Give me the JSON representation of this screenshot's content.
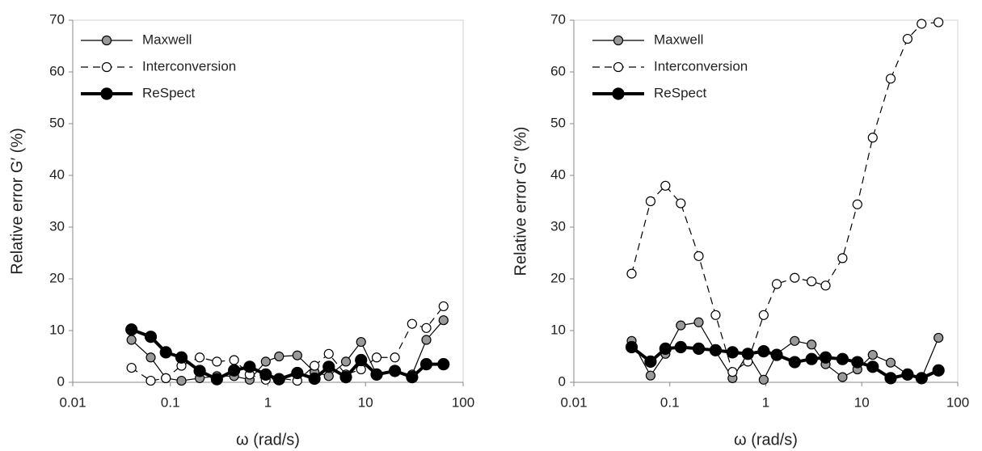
{
  "chart_data": [
    {
      "type": "line",
      "x_label": "ω (rad/s)",
      "y_label": "Relative error G′ (%)",
      "log_x": true,
      "x": [
        0.04,
        0.063,
        0.09,
        0.13,
        0.2,
        0.3,
        0.45,
        0.65,
        0.95,
        1.3,
        2,
        3,
        4.2,
        6.3,
        9,
        13,
        20,
        30,
        42,
        63
      ],
      "xlim": [
        0.01,
        100
      ],
      "xticks": [
        0.01,
        0.1,
        1,
        10,
        100
      ],
      "ylim": [
        0,
        70
      ],
      "yticks": [
        0,
        10,
        20,
        30,
        40,
        50,
        60,
        70
      ],
      "legend": "upper-left",
      "series": [
        {
          "name": "Maxwell",
          "color": "#000000",
          "marker_color": "#999999",
          "line_style": "solid",
          "bold": false,
          "values": [
            8.2,
            4.8,
            0.8,
            0.3,
            0.8,
            1.2,
            1.2,
            0.5,
            4,
            5,
            5.2,
            2,
            1.2,
            4,
            7.8,
            1.5,
            2,
            1.5,
            8.2,
            12
          ]
        },
        {
          "name": "Interconversion",
          "color": "#000000",
          "marker_color": "#ffffff",
          "line_style": "dashed",
          "bold": false,
          "values": [
            2.8,
            0.3,
            0.8,
            3.2,
            4.8,
            4,
            4.3,
            1.5,
            0.5,
            0.8,
            0.3,
            3.2,
            5.5,
            1.5,
            2.5,
            4.8,
            4.8,
            11.3,
            10.5,
            14.7
          ]
        },
        {
          "name": "ReSpect",
          "color": "#000000",
          "marker_color": "#000000",
          "line_style": "solid",
          "bold": true,
          "values": [
            10.2,
            8.8,
            5.8,
            4.8,
            2.2,
            0.6,
            2.3,
            3,
            1.5,
            0.6,
            1.8,
            0.7,
            3,
            1,
            4.3,
            1.5,
            2.2,
            1,
            3.5,
            3.5
          ]
        }
      ]
    },
    {
      "type": "line",
      "x_label": "ω (rad/s)",
      "y_label": "Relative error G″ (%)",
      "log_x": true,
      "x": [
        0.04,
        0.063,
        0.09,
        0.13,
        0.2,
        0.3,
        0.45,
        0.65,
        0.95,
        1.3,
        2,
        3,
        4.2,
        6.3,
        9,
        13,
        20,
        30,
        42,
        63
      ],
      "xlim": [
        0.01,
        100
      ],
      "xticks": [
        0.01,
        0.1,
        1,
        10,
        100
      ],
      "ylim": [
        0,
        70
      ],
      "yticks": [
        0,
        10,
        20,
        30,
        40,
        50,
        60,
        70
      ],
      "legend": "upper-left",
      "series": [
        {
          "name": "Maxwell",
          "color": "#000000",
          "marker_color": "#999999",
          "line_style": "solid",
          "bold": false,
          "values": [
            8,
            1.3,
            5.5,
            11,
            11.6,
            6,
            0.8,
            5.5,
            0.5,
            5.5,
            8,
            7.3,
            3.5,
            1,
            2.5,
            5.3,
            3.8,
            1.5,
            0.8,
            8.6
          ]
        },
        {
          "name": "Interconversion",
          "color": "#000000",
          "marker_color": "#ffffff",
          "line_style": "dashed",
          "bold": false,
          "values": [
            21,
            35,
            38,
            34.6,
            24.4,
            13,
            2,
            4,
            13,
            19,
            20.2,
            19.5,
            18.7,
            24,
            34.4,
            47.3,
            58.7,
            66.4,
            69.3,
            69.6
          ]
        },
        {
          "name": "ReSpect",
          "color": "#000000",
          "marker_color": "#000000",
          "line_style": "solid",
          "bold": true,
          "values": [
            6.8,
            4,
            6.5,
            6.8,
            6.5,
            6.2,
            5.8,
            5.5,
            6,
            5.3,
            3.9,
            4.5,
            4.8,
            4.5,
            3.9,
            3,
            0.8,
            1.5,
            0.8,
            2.3
          ]
        }
      ]
    }
  ]
}
